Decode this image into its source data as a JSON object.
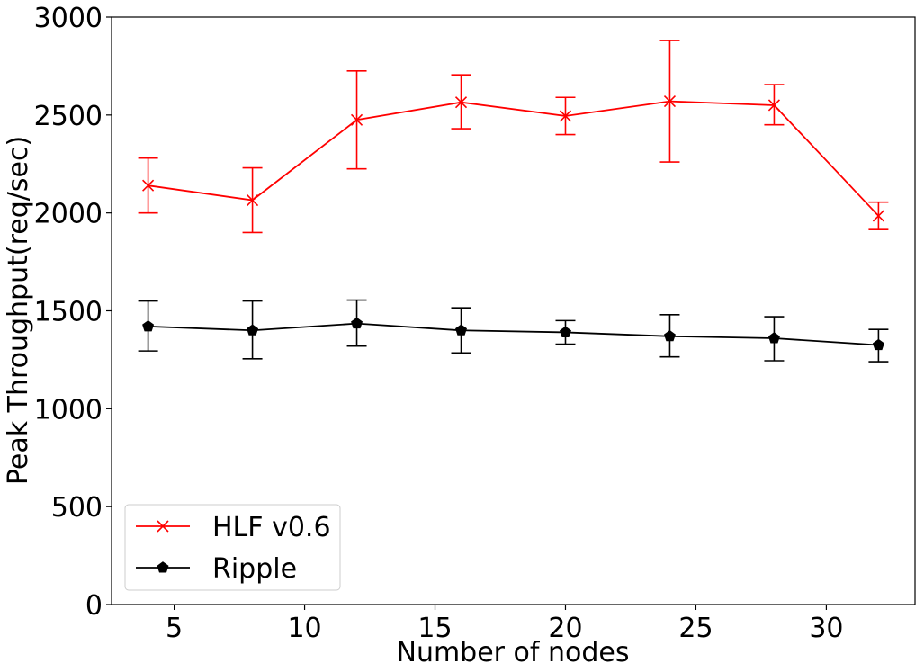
{
  "chart_data": {
    "type": "line",
    "title": "",
    "xlabel": "Number of nodes",
    "ylabel": "Peak Throughput(req/sec)",
    "xlim": [
      2.6,
      33.4
    ],
    "ylim": [
      0,
      3000
    ],
    "xticks": [
      5,
      10,
      15,
      20,
      25,
      30
    ],
    "yticks": [
      0,
      500,
      1000,
      1500,
      2000,
      2500,
      3000
    ],
    "grid": false,
    "legend_position": "lower-left",
    "x": [
      4,
      8,
      12,
      16,
      20,
      24,
      28,
      32
    ],
    "series": [
      {
        "name": "HLF v0.6",
        "color": "#ff0000",
        "marker": "x",
        "values": [
          2140,
          2065,
          2475,
          2565,
          2495,
          2570,
          2550,
          1985
        ],
        "err_low": [
          2000,
          1900,
          2225,
          2430,
          2400,
          2260,
          2450,
          1915
        ],
        "err_high": [
          2280,
          2230,
          2725,
          2705,
          2590,
          2880,
          2655,
          2055
        ]
      },
      {
        "name": "Ripple",
        "color": "#000000",
        "marker": "pentagon",
        "values": [
          1420,
          1400,
          1435,
          1400,
          1390,
          1370,
          1360,
          1325
        ],
        "err_low": [
          1295,
          1255,
          1320,
          1285,
          1330,
          1265,
          1245,
          1240
        ],
        "err_high": [
          1550,
          1550,
          1555,
          1515,
          1450,
          1480,
          1470,
          1405
        ]
      }
    ]
  }
}
